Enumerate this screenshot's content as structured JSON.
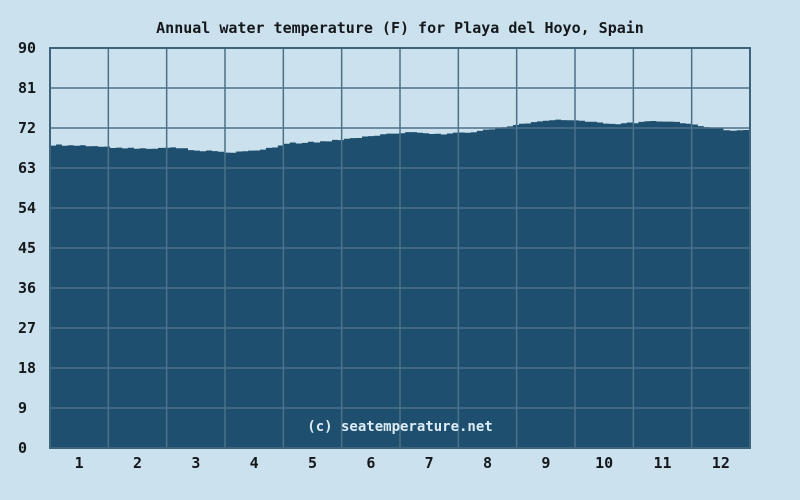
{
  "title": "Annual water temperature (F) for Playa del Hoyo, Spain",
  "watermark": "(c) seatemperature.net",
  "colors": {
    "background": "#cbe1ed",
    "area_fill": "#1f4f6e",
    "gridline": "#4c7189",
    "plot_border": "#3e647d",
    "text": "#14181c",
    "watermark_text": "#dcebf4"
  },
  "chart_data": {
    "type": "area",
    "title": "Annual water temperature (F) for Playa del Hoyo, Spain",
    "xlabel": "",
    "ylabel": "",
    "unit": "F",
    "x_tick_labels": [
      "1",
      "2",
      "3",
      "4",
      "5",
      "6",
      "7",
      "8",
      "9",
      "10",
      "11",
      "12"
    ],
    "y_ticks": [
      0,
      9,
      18,
      27,
      36,
      45,
      54,
      63,
      72,
      81,
      90
    ],
    "ylim": [
      0,
      90
    ],
    "xlim_months": [
      0,
      12
    ],
    "grid": true,
    "legend": false,
    "monthly_avg_f": [
      67.9,
      67.4,
      66.6,
      67.4,
      68.9,
      70.6,
      70.7,
      72.0,
      73.7,
      73.0,
      73.3,
      71.6
    ],
    "samples_month_tempF": [
      [
        0.0,
        68.2
      ],
      [
        0.51,
        68.0
      ],
      [
        1.03,
        67.6
      ],
      [
        1.54,
        67.4
      ],
      [
        2.06,
        67.6
      ],
      [
        2.57,
        66.9
      ],
      [
        3.09,
        66.5
      ],
      [
        3.6,
        67.2
      ],
      [
        4.11,
        68.6
      ],
      [
        4.63,
        68.9
      ],
      [
        5.14,
        69.6
      ],
      [
        5.66,
        70.5
      ],
      [
        6.09,
        71.0
      ],
      [
        6.6,
        70.6
      ],
      [
        7.11,
        71.0
      ],
      [
        7.63,
        71.9
      ],
      [
        8.14,
        73.1
      ],
      [
        8.66,
        73.8
      ],
      [
        9.17,
        73.4
      ],
      [
        9.69,
        72.9
      ],
      [
        10.29,
        73.5
      ],
      [
        10.8,
        73.2
      ],
      [
        11.31,
        72.1
      ],
      [
        11.66,
        71.3
      ],
      [
        12.0,
        71.6
      ]
    ]
  }
}
